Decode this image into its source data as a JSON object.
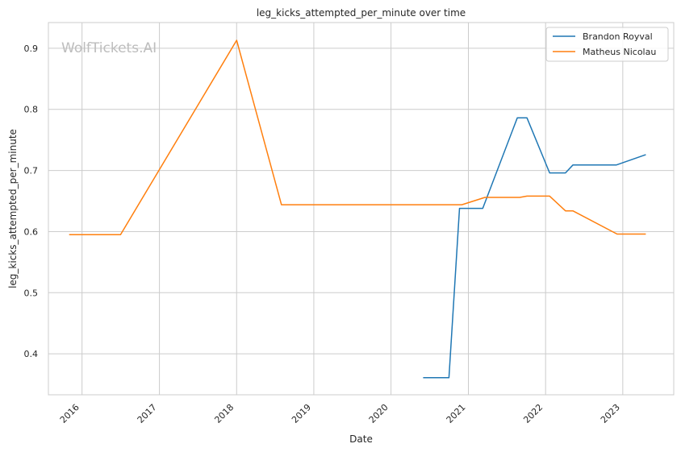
{
  "watermark": "WolfTickets.AI",
  "chart_data": {
    "type": "line",
    "title": "leg_kicks_attempted_per_minute over time",
    "xlabel": "Date",
    "ylabel": "leg_kicks_attempted_per_minute",
    "xlim": [
      "2015-07-26",
      "2023-08-30"
    ],
    "ylim": [
      0.333,
      0.942
    ],
    "x_ticks": [
      "2016",
      "2017",
      "2018",
      "2019",
      "2020",
      "2021",
      "2022",
      "2023"
    ],
    "y_ticks": [
      "0.4",
      "0.5",
      "0.6",
      "0.7",
      "0.8",
      "0.9"
    ],
    "grid": true,
    "legend_position": "top-right",
    "series": [
      {
        "name": "Brandon Royval",
        "color": "#1f77b4",
        "points": [
          [
            "2020-06-01",
            0.361
          ],
          [
            "2020-10-01",
            0.361
          ],
          [
            "2020-11-20",
            0.638
          ],
          [
            "2021-03-10",
            0.638
          ],
          [
            "2021-08-20",
            0.786
          ],
          [
            "2021-10-05",
            0.786
          ],
          [
            "2022-01-20",
            0.696
          ],
          [
            "2022-04-05",
            0.696
          ],
          [
            "2022-05-10",
            0.709
          ],
          [
            "2022-12-01",
            0.709
          ],
          [
            "2023-04-20",
            0.726
          ]
        ]
      },
      {
        "name": "Matheus Nicolau",
        "color": "#ff7f0e",
        "points": [
          [
            "2015-11-01",
            0.595
          ],
          [
            "2016-07-01",
            0.595
          ],
          [
            "2018-01-01",
            0.913
          ],
          [
            "2018-08-01",
            0.644
          ],
          [
            "2020-12-01",
            0.644
          ],
          [
            "2021-03-20",
            0.656
          ],
          [
            "2021-09-01",
            0.656
          ],
          [
            "2021-10-05",
            0.658
          ],
          [
            "2022-01-20",
            0.658
          ],
          [
            "2022-04-05",
            0.634
          ],
          [
            "2022-05-10",
            0.634
          ],
          [
            "2022-12-05",
            0.596
          ],
          [
            "2023-04-20",
            0.596
          ]
        ]
      }
    ]
  }
}
